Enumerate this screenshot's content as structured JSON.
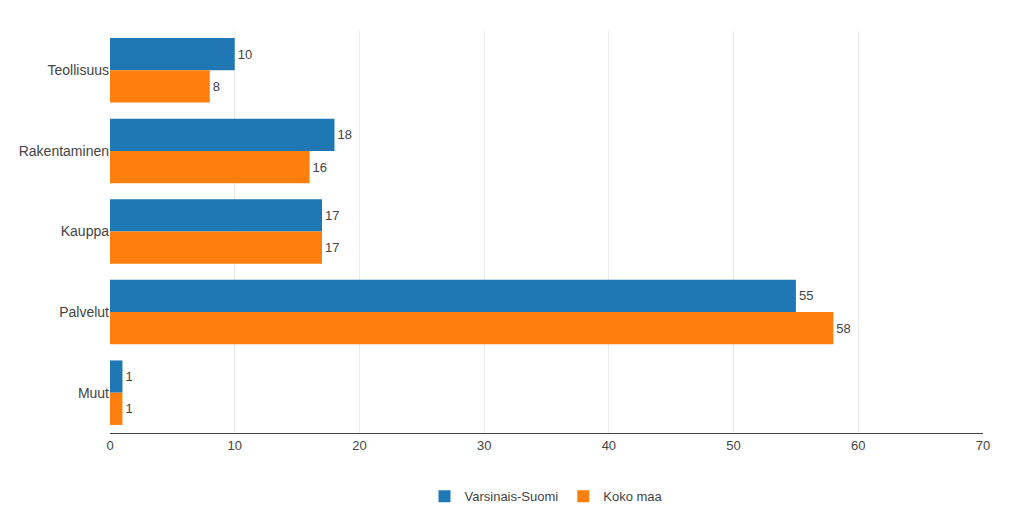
{
  "chart_data": {
    "type": "bar",
    "orientation": "horizontal",
    "categories": [
      "Teollisuus",
      "Rakentaminen",
      "Kauppa",
      "Palvelut",
      "Muut"
    ],
    "series": [
      {
        "name": "Varsinais-Suomi",
        "values": [
          10,
          18,
          17,
          55,
          1
        ]
      },
      {
        "name": "Koko maa",
        "values": [
          8,
          16,
          17,
          58,
          1
        ]
      }
    ],
    "xlim": [
      0,
      70
    ],
    "xticks": [
      0,
      10,
      20,
      30,
      40,
      50,
      60,
      70
    ],
    "grid": true,
    "data_labels": true,
    "legend": "lower center"
  }
}
